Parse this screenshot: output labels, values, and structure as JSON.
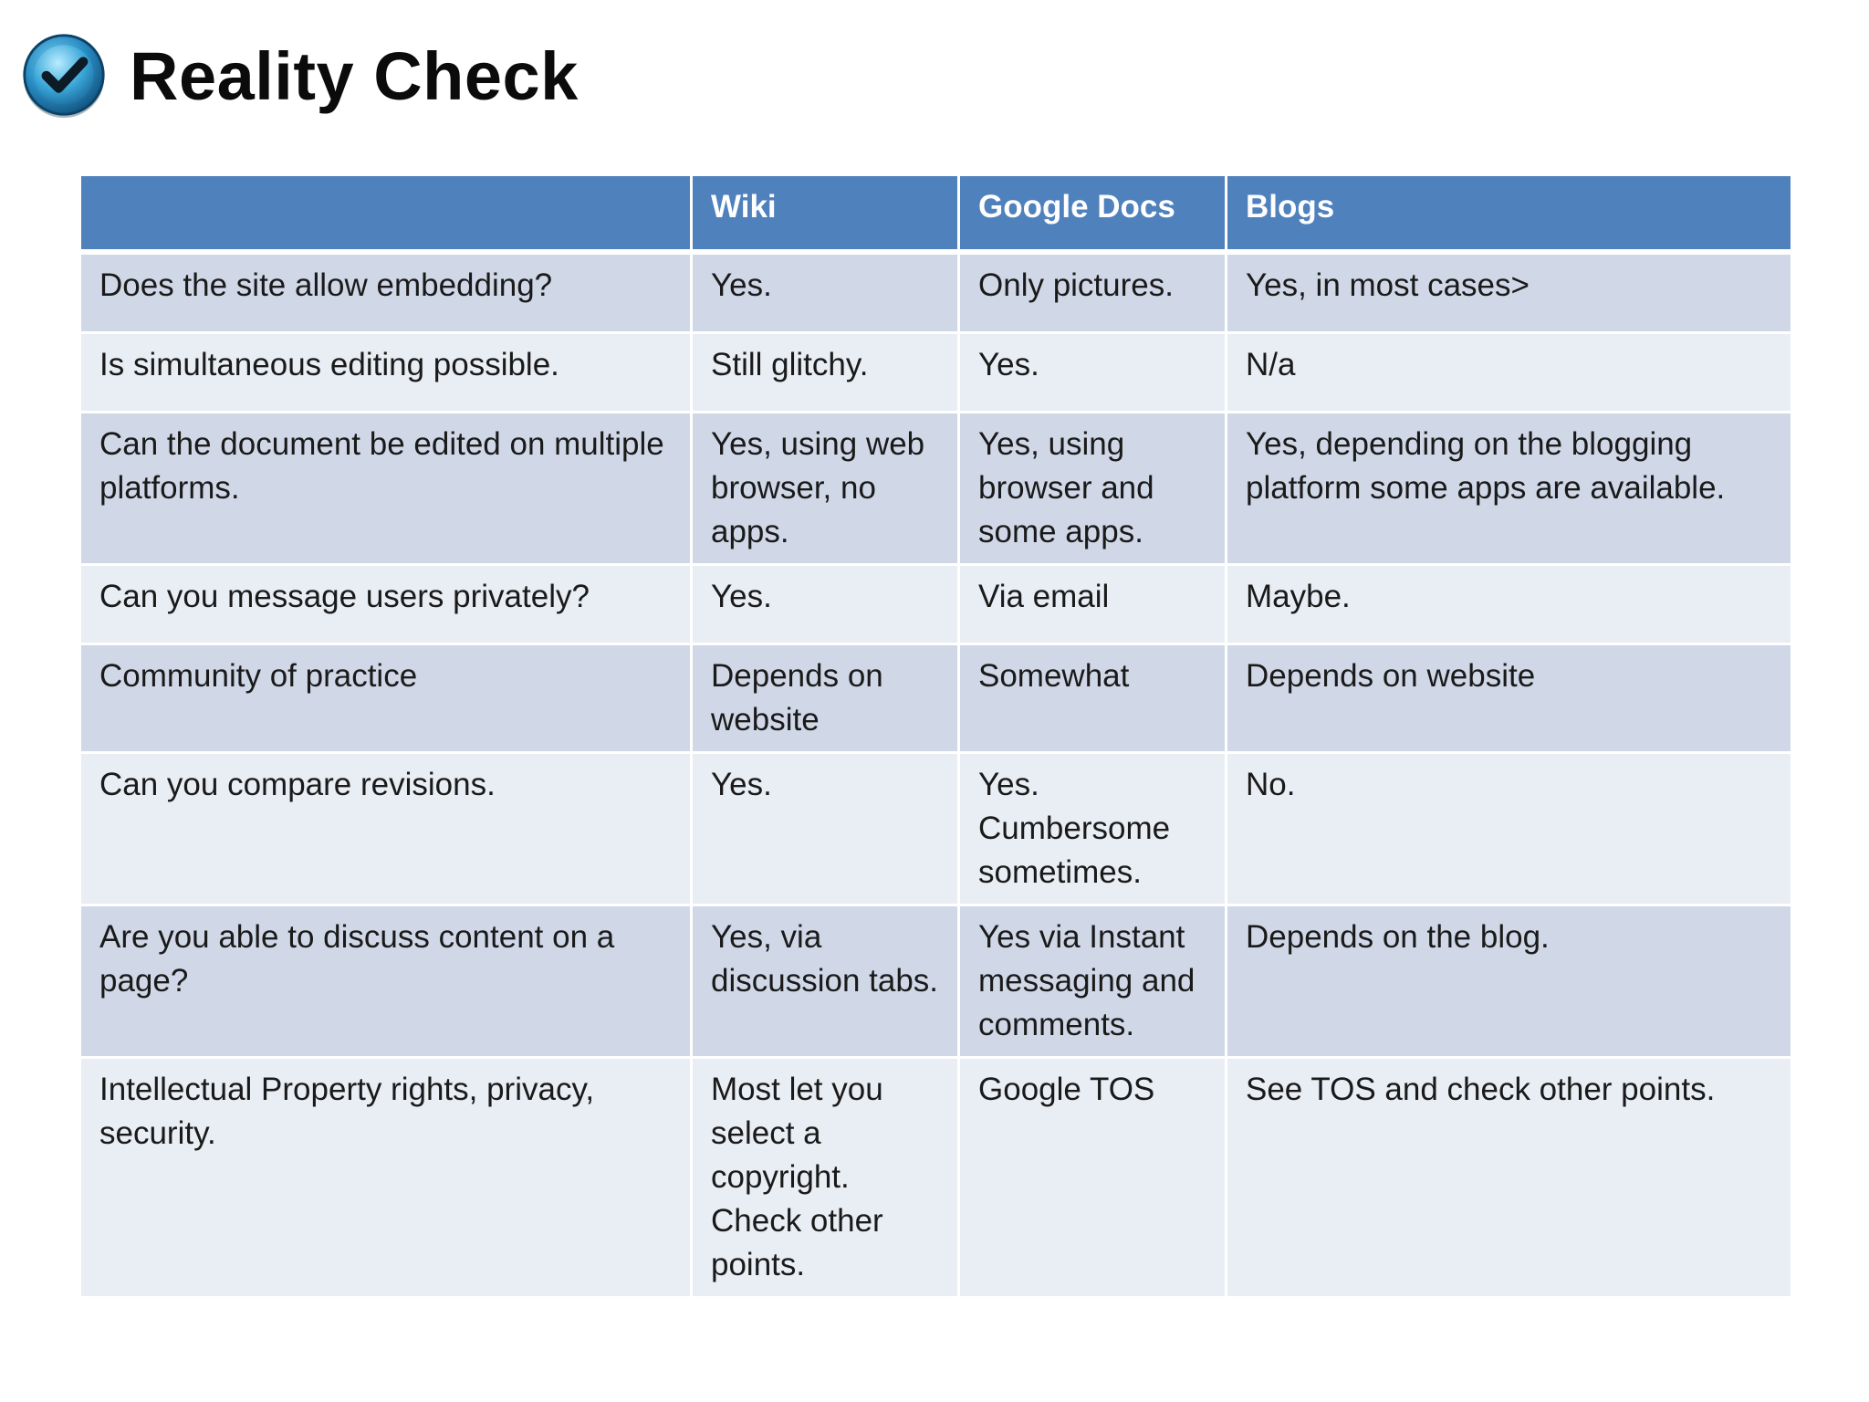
{
  "slide": {
    "title": "Reality Check",
    "icon": "checkmark-badge-icon",
    "colors": {
      "header_fill": "#4f81bd",
      "row_dark": "#d0d8e8",
      "row_light": "#e9edf4",
      "icon_blue": "#2b8fc6"
    }
  },
  "table": {
    "columns": [
      "",
      "Wiki",
      "Google Docs",
      "Blogs"
    ],
    "rows": [
      [
        "Does the site allow embedding?",
        "Yes.",
        "Only pictures.",
        "Yes, in most cases>"
      ],
      [
        "Is simultaneous editing possible.",
        "Still glitchy.",
        "Yes.",
        "N/a"
      ],
      [
        "Can the document be edited on multiple platforms.",
        "Yes, using web browser, no apps.",
        "Yes, using browser and some apps.",
        "Yes, depending on the blogging platform some apps are available."
      ],
      [
        "Can you message users privately?",
        "Yes.",
        "Via email",
        "Maybe."
      ],
      [
        "Community of practice",
        "Depends on website",
        "Somewhat",
        "Depends on website"
      ],
      [
        "Can you compare revisions.",
        "Yes.",
        "Yes. Cumbersome sometimes.",
        "No."
      ],
      [
        "Are you able to discuss content on a page?",
        "Yes, via discussion tabs.",
        "Yes via Instant messaging and comments.",
        "Depends on the blog."
      ],
      [
        "Intellectual Property rights, privacy, security.",
        "Most let you select a copyright. Check other points.",
        "Google TOS",
        "See TOS and check other points."
      ]
    ]
  }
}
